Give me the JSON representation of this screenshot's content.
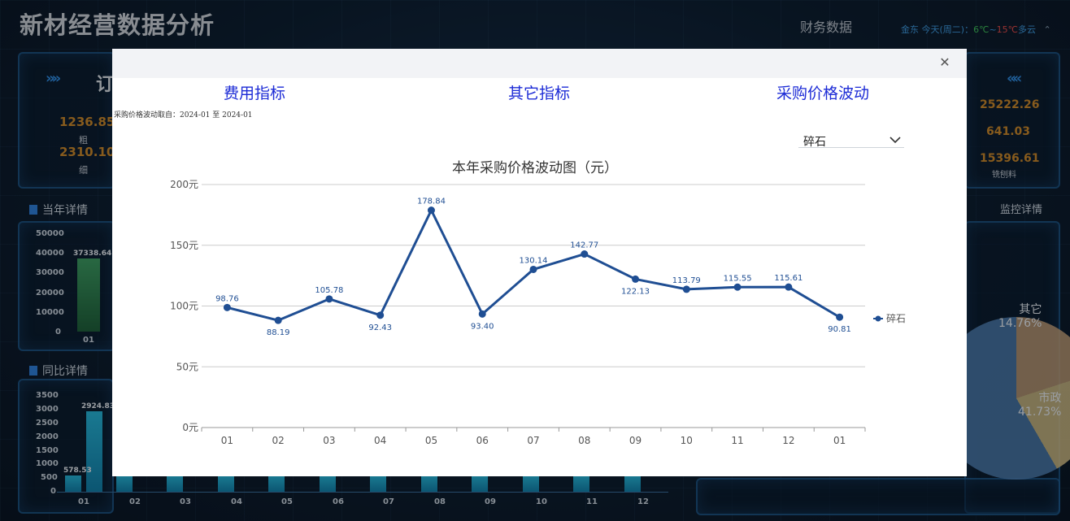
{
  "dashboard": {
    "title": "新材经营数据分析",
    "top_link": "财务数据",
    "weather": {
      "city": "金东",
      "day": "今天(周二)：",
      "low": "6℃",
      "sep": "~",
      "high": "15℃",
      "cond": "多云"
    },
    "order_panel": {
      "title_fragment": "订",
      "stats": [
        {
          "value": "1236.85",
          "label": "粗"
        },
        {
          "value": "2310.10",
          "label": "细"
        }
      ],
      "right_stats": [
        {
          "value": "25222.26",
          "label": ""
        },
        {
          "value": "641.03",
          "label": ""
        },
        {
          "value": "15396.61",
          "label": "铣刨料"
        }
      ]
    },
    "section_year": {
      "title": "当年详情",
      "y_ticks": [
        "50000",
        "40000",
        "30000",
        "20000",
        "10000",
        "0"
      ],
      "x_label": "01",
      "bar_label": "37338.64",
      "bar_value": 37338.64
    },
    "section_yoy": {
      "title": "同比详情",
      "y_ticks": [
        "3500",
        "3000",
        "2500",
        "2000",
        "1500",
        "1000",
        "500",
        "0"
      ],
      "x_labels": [
        "01",
        "02",
        "03",
        "04",
        "05",
        "06",
        "07",
        "08",
        "09",
        "10",
        "11",
        "12"
      ],
      "bar_labels": [
        "578.53",
        "2924.83"
      ]
    },
    "monitor": {
      "title": "监控详情",
      "pie_labels": [
        {
          "name": "其它",
          "pct": "14.76%"
        },
        {
          "name": "市政",
          "pct": "41.73%"
        }
      ]
    }
  },
  "modal": {
    "tabs": [
      "费用指标",
      "其它指标",
      "采购价格波动"
    ],
    "close_icon": "close-icon",
    "range_note": "采购价格波动取自：2024-01 至 2024-01",
    "select": {
      "value": "碎石",
      "icon": "chevron-down-icon"
    }
  },
  "chart_data": {
    "type": "line",
    "title": "本年采购价格波动图（元）",
    "categories": [
      "01",
      "02",
      "03",
      "04",
      "05",
      "06",
      "07",
      "08",
      "09",
      "10",
      "11",
      "12",
      "01"
    ],
    "series": [
      {
        "name": "碎石",
        "color": "#1f4e93",
        "values": [
          98.76,
          88.19,
          105.78,
          92.43,
          178.84,
          93.4,
          130.14,
          142.77,
          122.13,
          113.79,
          115.55,
          115.61,
          90.81
        ],
        "labels": [
          "98.76",
          "88.19",
          "105.78",
          "92.43",
          "178.84",
          "93.40",
          "130.14",
          "142.77",
          "122.13",
          "113.79",
          "115.55",
          "115.61",
          "90.81"
        ],
        "label_position": [
          "above",
          "below",
          "above",
          "below",
          "above",
          "below",
          "above",
          "above",
          "below",
          "above",
          "above",
          "above",
          "below"
        ]
      }
    ],
    "y_ticks": [
      "0元",
      "50元",
      "100元",
      "150元",
      "200元"
    ],
    "ylim": [
      0,
      200
    ],
    "grid": true,
    "legend": "right"
  }
}
